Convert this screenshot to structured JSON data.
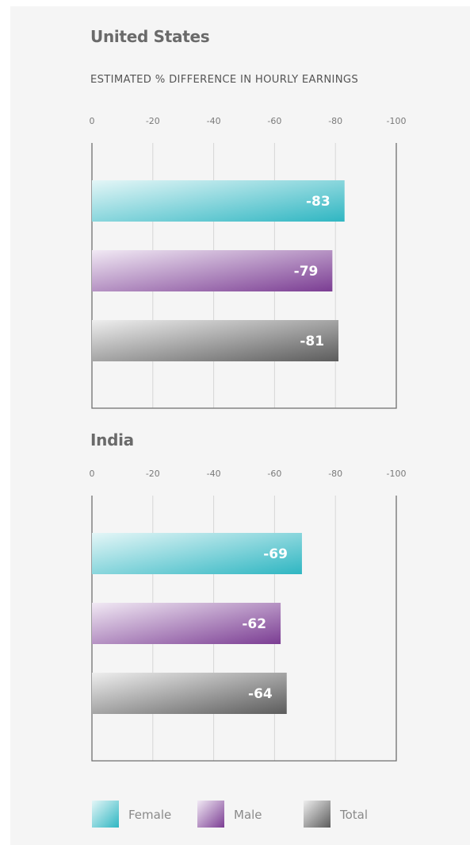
{
  "colors": {
    "female_start": "#e4f6f7",
    "female_end": "#2fb6c2",
    "male_start": "#f1e9f4",
    "male_end": "#7b3d93",
    "total_start": "#eeeeee",
    "total_end": "#5c5c5c",
    "axis": "#6f6f6f",
    "grid": "#d6d6d6"
  },
  "legend": [
    {
      "series": "female",
      "label": "Female"
    },
    {
      "series": "male",
      "label": "Male"
    },
    {
      "series": "total",
      "label": "Total"
    }
  ],
  "chart_data": [
    {
      "type": "bar",
      "orientation": "horizontal",
      "title": "United States",
      "subtitle": "ESTIMATED % DIFFERENCE IN HOURLY EARNINGS",
      "tick_values": [
        0,
        -20,
        -40,
        -60,
        -80,
        -100
      ],
      "tick_labels": [
        "0",
        "-20",
        "-40",
        "-60",
        "-80",
        "-100"
      ],
      "xlim": [
        0,
        -100
      ],
      "grid": true,
      "legend_position": "bottom",
      "series": [
        {
          "key": "female",
          "value": -83,
          "label": "-83"
        },
        {
          "key": "male",
          "value": -79,
          "label": "-79"
        },
        {
          "key": "total",
          "value": -81,
          "label": "-81"
        }
      ]
    },
    {
      "type": "bar",
      "orientation": "horizontal",
      "title": "India",
      "subtitle": "",
      "tick_values": [
        0,
        -20,
        -40,
        -60,
        -80,
        -100
      ],
      "tick_labels": [
        "0",
        "-20",
        "-40",
        "-60",
        "-80",
        "-100"
      ],
      "xlim": [
        0,
        -100
      ],
      "grid": true,
      "legend_position": "bottom",
      "series": [
        {
          "key": "female",
          "value": -69,
          "label": "-69"
        },
        {
          "key": "male",
          "value": -62,
          "label": "-62"
        },
        {
          "key": "total",
          "value": -64,
          "label": "-64"
        }
      ]
    }
  ]
}
